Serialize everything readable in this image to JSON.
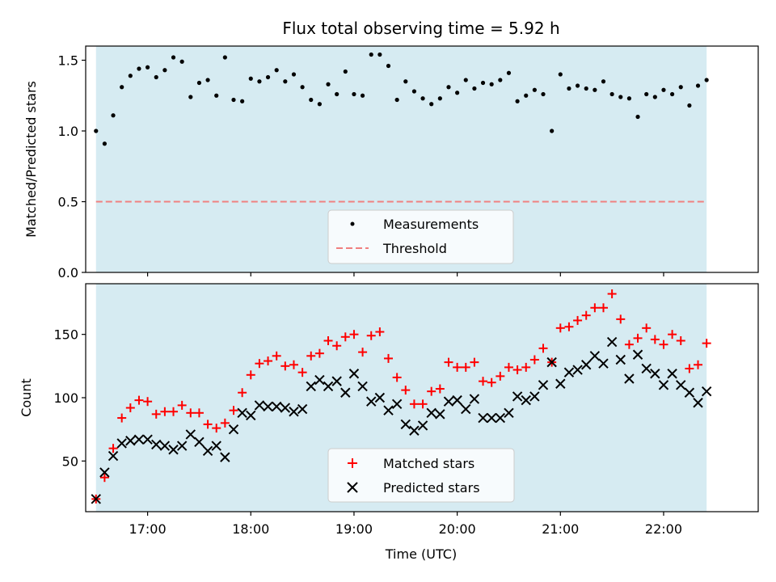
{
  "chart_data": [
    {
      "type": "scatter",
      "title": "Flux total observing time = 5.92 h",
      "xlabel": "",
      "ylabel": "Matched/Predicted stars",
      "xlim": [
        "16:24",
        "22:55"
      ],
      "ylim": [
        0,
        1.6
      ],
      "yticks": [
        0.0,
        0.5,
        1.0,
        1.5
      ],
      "ytick_labels": [
        "0.0",
        "0.5",
        "1.0",
        "1.5"
      ],
      "shaded_span": [
        "16:30",
        "22:25"
      ],
      "shade_color": "#add8e6",
      "threshold": {
        "name": "Threshold",
        "value": 0.5,
        "color": "#f08080",
        "style": "dashed"
      },
      "legend": {
        "placement": "lower-center",
        "entries": [
          "Measurements",
          "Threshold"
        ]
      },
      "series": [
        {
          "name": "Measurements",
          "marker": "dot",
          "color": "#000000",
          "x": [
            "16:30",
            "16:35",
            "16:40",
            "16:45",
            "16:50",
            "16:55",
            "17:00",
            "17:05",
            "17:10",
            "17:15",
            "17:20",
            "17:25",
            "17:30",
            "17:35",
            "17:40",
            "17:45",
            "17:50",
            "17:55",
            "18:00",
            "18:05",
            "18:10",
            "18:15",
            "18:20",
            "18:25",
            "18:30",
            "18:35",
            "18:40",
            "18:45",
            "18:50",
            "18:55",
            "19:00",
            "19:05",
            "19:10",
            "19:15",
            "19:20",
            "19:25",
            "19:30",
            "19:35",
            "19:40",
            "19:45",
            "19:50",
            "19:55",
            "20:00",
            "20:05",
            "20:10",
            "20:15",
            "20:20",
            "20:25",
            "20:30",
            "20:35",
            "20:40",
            "20:45",
            "20:50",
            "20:55",
            "21:00",
            "21:05",
            "21:10",
            "21:15",
            "21:20",
            "21:25",
            "21:30",
            "21:35",
            "21:40",
            "21:45",
            "21:50",
            "21:55",
            "22:00",
            "22:05",
            "22:10",
            "22:15",
            "22:20",
            "22:25"
          ],
          "values": [
            1.0,
            0.91,
            1.11,
            1.31,
            1.39,
            1.44,
            1.45,
            1.38,
            1.43,
            1.52,
            1.49,
            1.24,
            1.34,
            1.36,
            1.25,
            1.52,
            1.22,
            1.21,
            1.37,
            1.35,
            1.38,
            1.43,
            1.35,
            1.4,
            1.31,
            1.22,
            1.19,
            1.33,
            1.26,
            1.42,
            1.26,
            1.25,
            1.54,
            1.54,
            1.46,
            1.22,
            1.35,
            1.28,
            1.23,
            1.19,
            1.23,
            1.31,
            1.27,
            1.36,
            1.3,
            1.34,
            1.33,
            1.36,
            1.41,
            1.21,
            1.25,
            1.29,
            1.26,
            1.0,
            1.4,
            1.3,
            1.32,
            1.3,
            1.29,
            1.35,
            1.26,
            1.24,
            1.23,
            1.1,
            1.26,
            1.24,
            1.29,
            1.26,
            1.31,
            1.18,
            1.32,
            1.36
          ]
        }
      ]
    },
    {
      "type": "scatter",
      "title": "",
      "xlabel": "Time (UTC)",
      "ylabel": "Count",
      "xlim": [
        "16:24",
        "22:55"
      ],
      "ylim": [
        10,
        190
      ],
      "yticks": [
        50,
        100,
        150
      ],
      "ytick_labels": [
        "50",
        "100",
        "150"
      ],
      "xticks": [
        "17:00",
        "18:00",
        "19:00",
        "20:00",
        "21:00",
        "22:00"
      ],
      "shaded_span": [
        "16:30",
        "22:25"
      ],
      "shade_color": "#add8e6",
      "legend": {
        "placement": "lower-center",
        "entries": [
          "Matched stars",
          "Predicted stars"
        ]
      },
      "x": [
        "16:30",
        "16:35",
        "16:40",
        "16:45",
        "16:50",
        "16:55",
        "17:00",
        "17:05",
        "17:10",
        "17:15",
        "17:20",
        "17:25",
        "17:30",
        "17:35",
        "17:40",
        "17:45",
        "17:50",
        "17:55",
        "18:00",
        "18:05",
        "18:10",
        "18:15",
        "18:20",
        "18:25",
        "18:30",
        "18:35",
        "18:40",
        "18:45",
        "18:50",
        "18:55",
        "19:00",
        "19:05",
        "19:10",
        "19:15",
        "19:20",
        "19:25",
        "19:30",
        "19:35",
        "19:40",
        "19:45",
        "19:50",
        "19:55",
        "20:00",
        "20:05",
        "20:10",
        "20:15",
        "20:20",
        "20:25",
        "20:30",
        "20:35",
        "20:40",
        "20:45",
        "20:50",
        "20:55",
        "21:00",
        "21:05",
        "21:10",
        "21:15",
        "21:20",
        "21:25",
        "21:30",
        "21:35",
        "21:40",
        "21:45",
        "21:50",
        "21:55",
        "22:00",
        "22:05",
        "22:10",
        "22:15",
        "22:20",
        "22:25"
      ],
      "series": [
        {
          "name": "Matched stars",
          "marker": "plus",
          "color": "#ff0000",
          "values": [
            20,
            37,
            60,
            84,
            92,
            98,
            97,
            87,
            89,
            89,
            94,
            88,
            88,
            79,
            76,
            80,
            90,
            104,
            118,
            127,
            129,
            133,
            125,
            126,
            120,
            133,
            135,
            145,
            141,
            148,
            150,
            136,
            149,
            152,
            131,
            116,
            106,
            95,
            95,
            105,
            107,
            128,
            124,
            124,
            128,
            113,
            112,
            117,
            124,
            122,
            124,
            130,
            139,
            128,
            155,
            156,
            161,
            165,
            171,
            171,
            182,
            162,
            142,
            147,
            155,
            146,
            142,
            150,
            145,
            123,
            126,
            143
          ]
        },
        {
          "name": "Predicted stars",
          "marker": "x",
          "color": "#000000",
          "values": [
            20,
            41,
            54,
            64,
            66,
            67,
            67,
            63,
            62,
            59,
            62,
            71,
            65,
            58,
            62,
            53,
            75,
            88,
            86,
            94,
            93,
            93,
            92,
            89,
            91,
            109,
            114,
            109,
            113,
            104,
            119,
            109,
            97,
            100,
            90,
            95,
            79,
            74,
            78,
            88,
            87,
            97,
            98,
            91,
            99,
            84,
            84,
            84,
            88,
            101,
            98,
            101,
            110,
            128,
            111,
            120,
            122,
            126,
            133,
            127,
            144,
            130,
            115,
            134,
            123,
            119,
            110,
            119,
            110,
            104,
            96,
            105
          ]
        }
      ]
    }
  ]
}
